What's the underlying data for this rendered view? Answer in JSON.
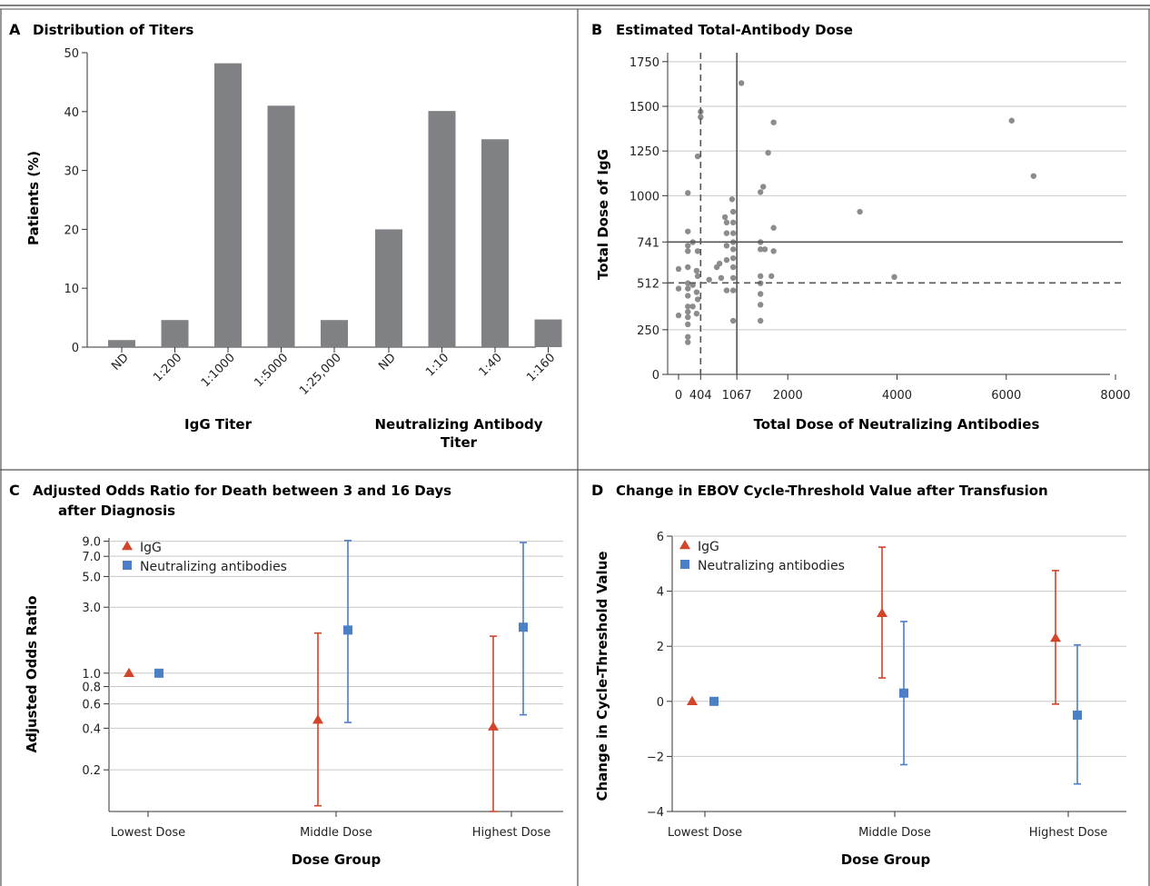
{
  "colors": {
    "bar": "#808184",
    "igg": "#d2452a",
    "neut": "#4b7fc6",
    "grid": "#c8c8c8",
    "point": "#8c8c8c",
    "axis": "#333333"
  },
  "chart_data": [
    {
      "panel": "A",
      "type": "bar",
      "title": "Distribution of Titers",
      "ylabel": "Patients (%)",
      "ylim": [
        0,
        50
      ],
      "yticks": [
        0,
        10,
        20,
        30,
        40,
        50
      ],
      "groups": [
        {
          "label": "IgG Titer",
          "categories": [
            "ND",
            "1:200",
            "1:1000",
            "1:5000",
            "1:25,000"
          ],
          "values": [
            1.2,
            4.6,
            48.2,
            41.0,
            4.6
          ]
        },
        {
          "label": "Neutralizing Antibody Titer",
          "categories": [
            "ND",
            "1:10",
            "1:40",
            "1:160"
          ],
          "values": [
            20.0,
            40.1,
            35.3,
            4.7
          ]
        }
      ]
    },
    {
      "panel": "B",
      "type": "scatter",
      "title": "Estimated Total-Antibody Dose",
      "xlabel": "Total Dose of Neutralizing Antibodies",
      "ylabel": "Total Dose of IgG",
      "xlim": [
        -200,
        8200
      ],
      "ylim": [
        0,
        1800
      ],
      "xticks": [
        0,
        404,
        1067,
        2000,
        4000,
        6000,
        8000
      ],
      "yticks": [
        0,
        250,
        512,
        741,
        1000,
        1250,
        1500,
        1750
      ],
      "reference_lines": {
        "median_x": 1067,
        "median_y": 741,
        "dashed_x": 404,
        "dashed_y": 512
      },
      "points": [
        [
          0,
          590
        ],
        [
          0,
          480
        ],
        [
          0,
          330
        ],
        [
          170,
          1015
        ],
        [
          170,
          800
        ],
        [
          170,
          720
        ],
        [
          170,
          690
        ],
        [
          170,
          600
        ],
        [
          170,
          510
        ],
        [
          170,
          480
        ],
        [
          170,
          440
        ],
        [
          170,
          380
        ],
        [
          170,
          350
        ],
        [
          170,
          320
        ],
        [
          170,
          280
        ],
        [
          170,
          210
        ],
        [
          170,
          180
        ],
        [
          260,
          740
        ],
        [
          260,
          500
        ],
        [
          260,
          380
        ],
        [
          330,
          580
        ],
        [
          330,
          460
        ],
        [
          330,
          340
        ],
        [
          350,
          1220
        ],
        [
          350,
          690
        ],
        [
          350,
          550
        ],
        [
          350,
          420
        ],
        [
          404,
          1440
        ],
        [
          404,
          1470
        ],
        [
          560,
          530
        ],
        [
          700,
          600
        ],
        [
          750,
          620
        ],
        [
          780,
          540
        ],
        [
          850,
          880
        ],
        [
          880,
          850
        ],
        [
          880,
          790
        ],
        [
          880,
          720
        ],
        [
          880,
          640
        ],
        [
          880,
          470
        ],
        [
          980,
          980
        ],
        [
          1000,
          910
        ],
        [
          1000,
          850
        ],
        [
          1000,
          790
        ],
        [
          1000,
          740
        ],
        [
          1000,
          700
        ],
        [
          1000,
          650
        ],
        [
          1000,
          600
        ],
        [
          1000,
          540
        ],
        [
          1000,
          470
        ],
        [
          1000,
          300
        ],
        [
          1150,
          1630
        ],
        [
          1500,
          1020
        ],
        [
          1500,
          740
        ],
        [
          1500,
          700
        ],
        [
          1500,
          550
        ],
        [
          1500,
          510
        ],
        [
          1500,
          450
        ],
        [
          1500,
          390
        ],
        [
          1500,
          300
        ],
        [
          1550,
          1050
        ],
        [
          1580,
          700
        ],
        [
          1640,
          1240
        ],
        [
          1700,
          550
        ],
        [
          1740,
          1410
        ],
        [
          1740,
          820
        ],
        [
          1740,
          690
        ],
        [
          3320,
          910
        ],
        [
          3950,
          545
        ],
        [
          6100,
          1420
        ],
        [
          6500,
          1110
        ]
      ]
    },
    {
      "panel": "C",
      "type": "scatter",
      "title_line1": "Adjusted Odds Ratio for Death between 3 and 16 Days",
      "title_line2": "after Diagnosis",
      "xlabel": "Dose Group",
      "ylabel": "Adjusted Odds Ratio",
      "scale": "log",
      "ylim": [
        0.1,
        9.5
      ],
      "yticks": [
        0.2,
        0.4,
        0.6,
        0.8,
        1.0,
        3.0,
        5.0,
        7.0,
        9.0
      ],
      "yticklabels": [
        "0.2",
        "0.4",
        "0.6",
        "0.8",
        "1.0",
        "3.0",
        "5.0",
        "7.0",
        "9.0"
      ],
      "categories": [
        "Lowest Dose",
        "Middle Dose",
        "Highest Dose"
      ],
      "legend_position": "top-left",
      "series": [
        {
          "name": "IgG",
          "marker": "triangle",
          "values": [
            1.0,
            0.46,
            0.41
          ],
          "lower": [
            null,
            0.11,
            0.1
          ],
          "upper": [
            null,
            1.95,
            1.85
          ]
        },
        {
          "name": "Neutralizing antibodies",
          "marker": "square",
          "values": [
            1.0,
            2.05,
            2.15
          ],
          "lower": [
            null,
            0.44,
            0.5
          ],
          "upper": [
            null,
            9.1,
            8.8
          ]
        }
      ]
    },
    {
      "panel": "D",
      "type": "scatter",
      "title": "Change in EBOV Cycle-Threshold Value after Transfusion",
      "xlabel": "Dose Group",
      "ylabel": "Change in Cycle-Threshold Value",
      "ylim": [
        -4,
        6
      ],
      "yticks": [
        -4,
        -2,
        0,
        2,
        4,
        6
      ],
      "yticklabels": [
        "−4",
        "−2",
        "0",
        "2",
        "4",
        "6"
      ],
      "categories": [
        "Lowest Dose",
        "Middle Dose",
        "Highest Dose"
      ],
      "legend_position": "top-left",
      "series": [
        {
          "name": "IgG",
          "marker": "triangle",
          "values": [
            0.0,
            3.2,
            2.3
          ],
          "lower": [
            null,
            0.85,
            -0.1
          ],
          "upper": [
            null,
            5.6,
            4.75
          ]
        },
        {
          "name": "Neutralizing antibodies",
          "marker": "square",
          "values": [
            0.0,
            0.3,
            -0.5
          ],
          "lower": [
            null,
            -2.3,
            -3.0
          ],
          "upper": [
            null,
            2.9,
            2.05
          ]
        }
      ]
    }
  ]
}
